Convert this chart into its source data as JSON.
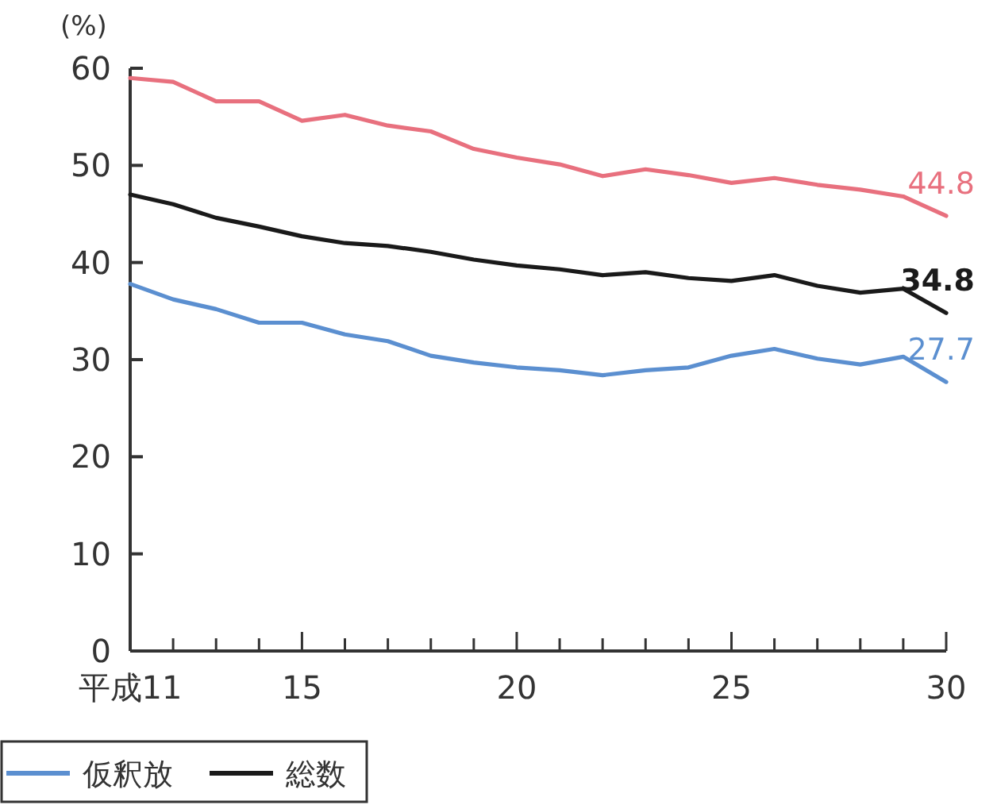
{
  "chart_data": {
    "type": "line",
    "ylabel": "(%)",
    "x": [
      11,
      12,
      13,
      14,
      15,
      16,
      17,
      18,
      19,
      20,
      21,
      22,
      23,
      24,
      25,
      26,
      27,
      28,
      29,
      30
    ],
    "xlim": [
      11,
      30
    ],
    "xticks": [
      {
        "value": 11,
        "label": "平成11"
      },
      {
        "value": 12,
        "label": null
      },
      {
        "value": 13,
        "label": null
      },
      {
        "value": 14,
        "label": null
      },
      15,
      {
        "value": 16,
        "label": null
      },
      {
        "value": 17,
        "label": null
      },
      {
        "value": 18,
        "label": null
      },
      {
        "value": 19,
        "label": null
      },
      20,
      {
        "value": 21,
        "label": null
      },
      {
        "value": 22,
        "label": null
      },
      {
        "value": 23,
        "label": null
      },
      {
        "value": 24,
        "label": null
      },
      25,
      {
        "value": 26,
        "label": null
      },
      {
        "value": 27,
        "label": null
      },
      {
        "value": 28,
        "label": null
      },
      {
        "value": 29,
        "label": null
      },
      30
    ],
    "ylim": [
      0,
      60
    ],
    "yticks": [
      0,
      10,
      20,
      30,
      40,
      50,
      60
    ],
    "grid": false,
    "legend": "bottom left",
    "marker": "none",
    "line_style": "solid",
    "series": [
      {
        "color": "#e8707e",
        "values": [
          59.0,
          58.6,
          56.6,
          56.6,
          54.6,
          55.2,
          54.1,
          53.5,
          51.7,
          50.8,
          50.1,
          48.9,
          49.6,
          49.0,
          48.2,
          48.7,
          48.0,
          47.5,
          46.8,
          44.8
        ],
        "value_labels": [
          null,
          null,
          null,
          null,
          null,
          null,
          null,
          null,
          null,
          null,
          null,
          null,
          null,
          null,
          null,
          null,
          null,
          null,
          null,
          "44.8"
        ]
      },
      {
        "name": "総数",
        "color": "#1a1a1a",
        "values": [
          47.0,
          46.0,
          44.6,
          43.7,
          42.7,
          42.0,
          41.7,
          41.1,
          40.3,
          39.7,
          39.3,
          38.7,
          39.0,
          38.4,
          38.1,
          38.7,
          37.6,
          36.9,
          37.3,
          34.8
        ],
        "value_labels": [
          null,
          null,
          null,
          null,
          null,
          null,
          null,
          null,
          null,
          null,
          null,
          null,
          null,
          null,
          null,
          null,
          null,
          null,
          null,
          "34.8"
        ]
      },
      {
        "name": "仮釈放",
        "color": "#5b8fd0",
        "values": [
          37.8,
          36.2,
          35.2,
          33.8,
          33.8,
          32.6,
          31.9,
          30.4,
          29.7,
          29.2,
          28.9,
          28.4,
          28.9,
          29.2,
          30.4,
          31.1,
          30.1,
          29.5,
          30.3,
          27.7
        ],
        "value_labels": [
          null,
          null,
          null,
          null,
          null,
          null,
          null,
          null,
          null,
          null,
          null,
          null,
          null,
          null,
          null,
          null,
          null,
          null,
          null,
          "27.7"
        ]
      }
    ]
  }
}
